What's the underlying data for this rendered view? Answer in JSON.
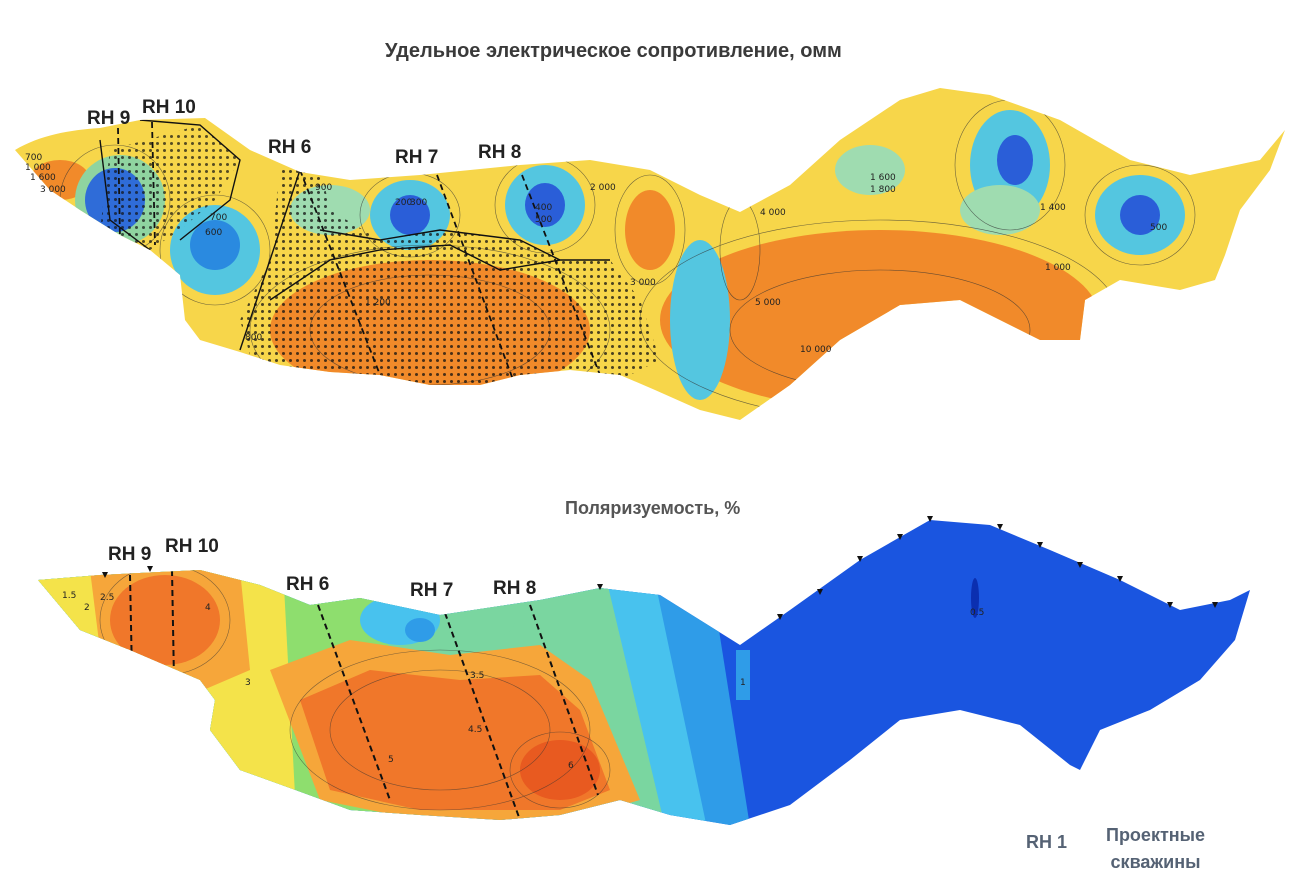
{
  "resistivity": {
    "title": "Удельное электрическое сопротивление, омм",
    "wells": [
      "RH 9",
      "RH 10",
      "RH 6",
      "RH 7",
      "RH 8"
    ],
    "contour_labels": [
      "700",
      "1 000",
      "1 600",
      "3 000",
      "600",
      "700",
      "800",
      "900",
      "1 200",
      "200",
      "300",
      "400",
      "500",
      "1 600",
      "1 800",
      "2 000",
      "3 000",
      "5 000",
      "10 000",
      "4 000",
      "1 400",
      "1 000",
      "500"
    ]
  },
  "polarizability": {
    "title": "Поляризуемость, %",
    "wells": [
      "RH 9",
      "RH 10",
      "RH 6",
      "RH 7",
      "RH 8"
    ],
    "contour_labels": [
      "1.5",
      "2",
      "2.5",
      "3",
      "3.5",
      "4",
      "4.5",
      "5",
      "6",
      "1",
      "0.5"
    ]
  },
  "legend": {
    "well_symbol": "RH 1",
    "text_line1": "Проектные",
    "text_line2": "скважины"
  }
}
